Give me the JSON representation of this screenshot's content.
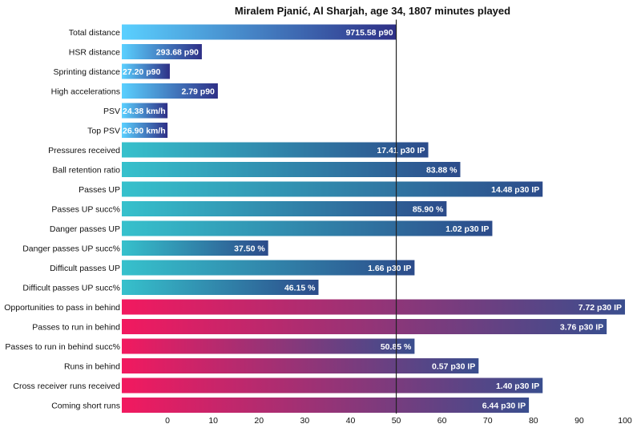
{
  "chart_data": {
    "type": "bar",
    "orientation": "horizontal",
    "title": "Miralem Pjanić, Al Sharjah, age 34, 1807 minutes played",
    "xlim": [
      -10,
      100
    ],
    "xticks": [
      0,
      10,
      20,
      30,
      40,
      50,
      60,
      70,
      80,
      90,
      100
    ],
    "reference_line": 50,
    "grid": false,
    "colors": {
      "physical": [
        "#5ad0ff",
        "#2e2f86"
      ],
      "passing": [
        "#36c1cc",
        "#2c4b8a"
      ],
      "running": [
        "#f2195f",
        "#3a4e8e"
      ]
    },
    "bars": [
      {
        "category": "Total distance",
        "value": 50,
        "label": "9715.58 p90",
        "group": "physical"
      },
      {
        "category": "HSR distance",
        "value": 7.5,
        "label": "293.68 p90",
        "group": "physical"
      },
      {
        "category": "Sprinting distance",
        "value": 0.5,
        "label": "27.20 p90",
        "group": "physical"
      },
      {
        "category": "High accelerations",
        "value": 11,
        "label": "2.79 p90",
        "group": "physical"
      },
      {
        "category": "PSV",
        "value": 0,
        "label": "24.38 km/h",
        "group": "physical"
      },
      {
        "category": "Top PSV",
        "value": 0,
        "label": "26.90 km/h",
        "group": "physical"
      },
      {
        "category": "Pressures received",
        "value": 57,
        "label": "17.41 p30 IP",
        "group": "passing"
      },
      {
        "category": "Ball retention ratio",
        "value": 64,
        "label": "83.88 %",
        "group": "passing"
      },
      {
        "category": "Passes UP",
        "value": 82,
        "label": "14.48 p30 IP",
        "group": "passing"
      },
      {
        "category": "Passes UP succ%",
        "value": 61,
        "label": "85.90 %",
        "group": "passing"
      },
      {
        "category": "Danger passes UP",
        "value": 71,
        "label": "1.02 p30 IP",
        "group": "passing"
      },
      {
        "category": "Danger passes UP succ%",
        "value": 22,
        "label": "37.50 %",
        "group": "passing"
      },
      {
        "category": "Difficult passes UP",
        "value": 54,
        "label": "1.66 p30 IP",
        "group": "passing"
      },
      {
        "category": "Difficult passes UP succ%",
        "value": 33,
        "label": "46.15 %",
        "group": "passing"
      },
      {
        "category": "Opportunities to pass in behind",
        "value": 100,
        "label": "7.72 p30 IP",
        "group": "running"
      },
      {
        "category": "Passes to run in behind",
        "value": 96,
        "label": "3.76 p30 IP",
        "group": "running"
      },
      {
        "category": "Passes to run in behind succ%",
        "value": 54,
        "label": "50.85 %",
        "group": "running"
      },
      {
        "category": "Runs in behind",
        "value": 68,
        "label": "0.57 p30 IP",
        "group": "running"
      },
      {
        "category": "Cross receiver runs received",
        "value": 82,
        "label": "1.40 p30 IP",
        "group": "running"
      },
      {
        "category": "Coming short runs",
        "value": 79,
        "label": "6.44 p30 IP",
        "group": "running"
      }
    ]
  }
}
